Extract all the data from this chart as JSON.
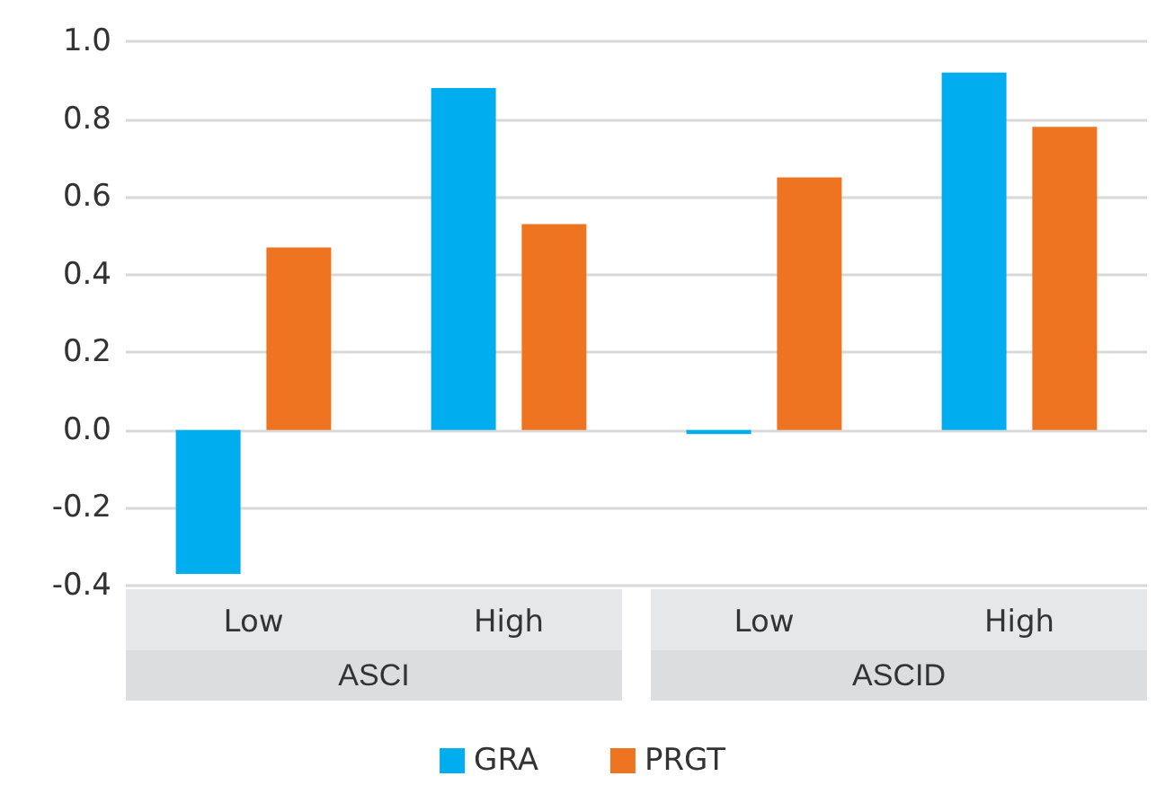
{
  "chart_data": {
    "type": "bar",
    "categories": [
      "Low",
      "High",
      "Low",
      "High"
    ],
    "series": [
      {
        "name": "GRA",
        "color": "#00aeef",
        "values": [
          -0.37,
          0.88,
          -0.01,
          0.92
        ]
      },
      {
        "name": "PRGT",
        "color": "#ee7421",
        "values": [
          0.47,
          0.53,
          0.65,
          0.78
        ]
      }
    ],
    "ylim": [
      -0.4,
      1.0
    ],
    "yticks": [
      {
        "value": -0.4,
        "label": "-0.4"
      },
      {
        "value": -0.2,
        "label": "-0.2"
      },
      {
        "value": 0,
        "label": "0.0"
      },
      0.2,
      0.4,
      0.6,
      0.8,
      {
        "value": 1.0,
        "label": "1.0"
      }
    ],
    "annotations": [
      "ASCI",
      "ASCID"
    ],
    "grid": "y",
    "legend": "bottom"
  }
}
